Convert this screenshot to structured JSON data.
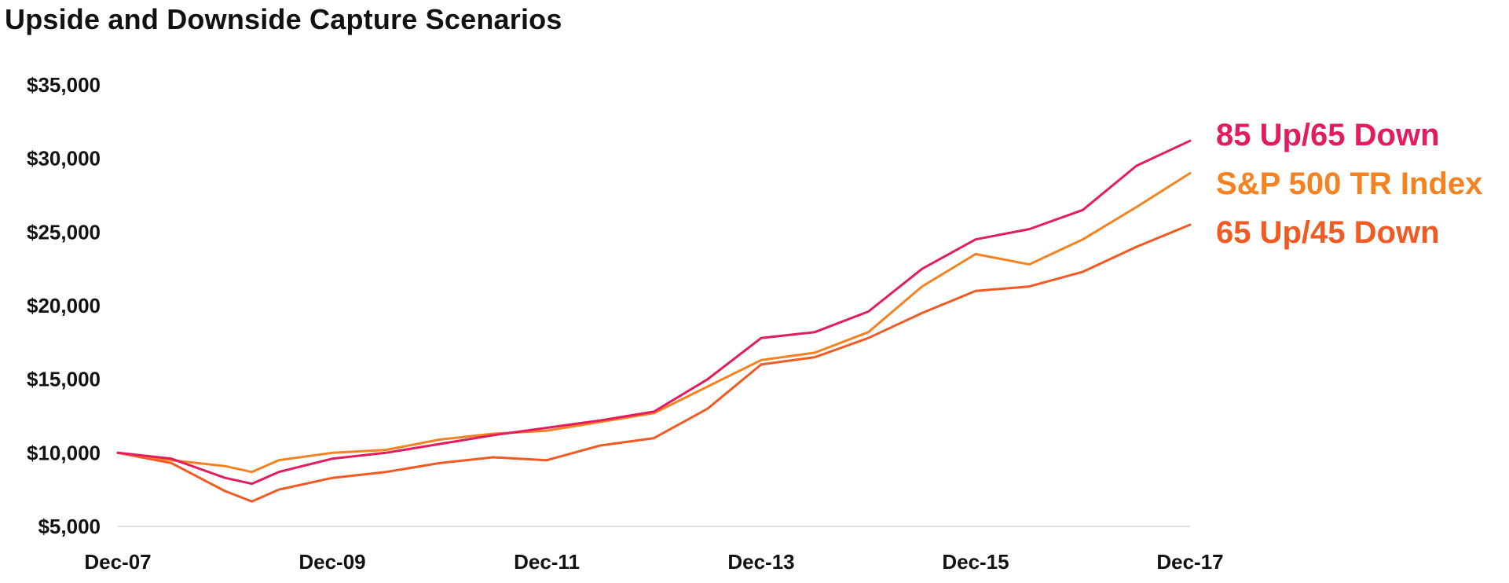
{
  "title": "Upside and Downside Capture Scenarios",
  "chart_data": {
    "type": "line",
    "title": "Upside and Downside Capture Scenarios",
    "xlabel": "",
    "ylabel": "",
    "ylim": [
      5000,
      35000
    ],
    "yticks": [
      5000,
      10000,
      15000,
      20000,
      25000,
      30000,
      35000
    ],
    "ytick_labels": [
      "$5,000",
      "$10,000",
      "$15,000",
      "$20,000",
      "$25,000",
      "$30,000",
      "$35,000"
    ],
    "xlim": [
      "Dec-07",
      "Dec-17"
    ],
    "xtick_labels": [
      "Dec-07",
      "Dec-09",
      "Dec-11",
      "Dec-13",
      "Dec-15",
      "Dec-17"
    ],
    "grid": false,
    "legend_placement": "right, at line ends",
    "series": [
      {
        "name": "85 Up/65 Down",
        "color": "#E31C5F",
        "points": [
          [
            "Dec-07",
            10000
          ],
          [
            "Jun-08",
            9600
          ],
          [
            "Dec-08",
            8300
          ],
          [
            "Mar-09",
            7900
          ],
          [
            "Jun-09",
            8700
          ],
          [
            "Dec-09",
            9600
          ],
          [
            "Jun-10",
            10000
          ],
          [
            "Dec-10",
            10600
          ],
          [
            "Jun-11",
            11200
          ],
          [
            "Dec-11",
            11700
          ],
          [
            "Jun-12",
            12200
          ],
          [
            "Dec-12",
            12800
          ],
          [
            "Jun-13",
            15000
          ],
          [
            "Dec-13",
            17800
          ],
          [
            "Jun-14",
            18200
          ],
          [
            "Dec-14",
            19600
          ],
          [
            "Jun-15",
            22500
          ],
          [
            "Dec-15",
            24500
          ],
          [
            "Jun-16",
            25200
          ],
          [
            "Dec-16",
            26500
          ],
          [
            "Jun-17",
            29500
          ],
          [
            "Dec-17",
            31200
          ]
        ]
      },
      {
        "name": "S&P 500 TR Index",
        "color": "#F58220",
        "points": [
          [
            "Dec-07",
            10000
          ],
          [
            "Jun-08",
            9500
          ],
          [
            "Dec-08",
            9100
          ],
          [
            "Mar-09",
            8700
          ],
          [
            "Jun-09",
            9500
          ],
          [
            "Dec-09",
            10000
          ],
          [
            "Jun-10",
            10200
          ],
          [
            "Dec-10",
            10900
          ],
          [
            "Jun-11",
            11300
          ],
          [
            "Dec-11",
            11500
          ],
          [
            "Jun-12",
            12100
          ],
          [
            "Dec-12",
            12700
          ],
          [
            "Jun-13",
            14500
          ],
          [
            "Dec-13",
            16300
          ],
          [
            "Jun-14",
            16800
          ],
          [
            "Dec-14",
            18200
          ],
          [
            "Jun-15",
            21300
          ],
          [
            "Dec-15",
            23500
          ],
          [
            "Jun-16",
            22800
          ],
          [
            "Dec-16",
            24500
          ],
          [
            "Jun-17",
            26700
          ],
          [
            "Dec-17",
            29000
          ]
        ]
      },
      {
        "name": "65 Up/45 Down",
        "color": "#F15A22",
        "points": [
          [
            "Dec-07",
            10000
          ],
          [
            "Jun-08",
            9300
          ],
          [
            "Dec-08",
            7400
          ],
          [
            "Mar-09",
            6700
          ],
          [
            "Jun-09",
            7500
          ],
          [
            "Dec-09",
            8300
          ],
          [
            "Jun-10",
            8700
          ],
          [
            "Dec-10",
            9300
          ],
          [
            "Jun-11",
            9700
          ],
          [
            "Dec-11",
            9500
          ],
          [
            "Jun-12",
            10500
          ],
          [
            "Dec-12",
            11000
          ],
          [
            "Jun-13",
            13000
          ],
          [
            "Dec-13",
            16000
          ],
          [
            "Jun-14",
            16500
          ],
          [
            "Dec-14",
            17800
          ],
          [
            "Jun-15",
            19500
          ],
          [
            "Dec-15",
            21000
          ],
          [
            "Jun-16",
            21300
          ],
          [
            "Dec-16",
            22300
          ],
          [
            "Jun-17",
            24000
          ],
          [
            "Dec-17",
            25500
          ]
        ]
      }
    ]
  }
}
